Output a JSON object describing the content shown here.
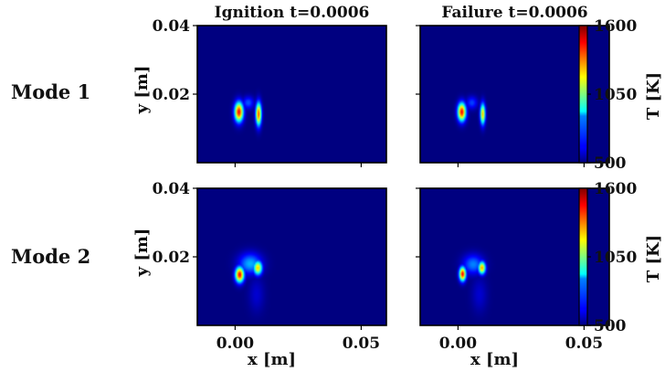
{
  "chart_data": {
    "type": "heatmap",
    "rows": [
      {
        "label": "Mode 1"
      },
      {
        "label": "Mode 2"
      }
    ],
    "columns": [
      {
        "title": "Ignition t=0.0006"
      },
      {
        "title": "Failure t=0.0006"
      }
    ],
    "xlabel": "x [m]",
    "ylabel": "y [m]",
    "xlim": [
      -0.015,
      0.06
    ],
    "ylim": [
      0.0,
      0.04
    ],
    "xticks": [
      0.0,
      0.05
    ],
    "xticklabels": [
      "0.00",
      "0.05"
    ],
    "yticks": [
      0.04,
      0.02
    ],
    "yticklabels": [
      "0.04",
      "0.02"
    ],
    "colorbar": {
      "label": "T [K]",
      "min": 500,
      "max": 1600,
      "ticks": [
        1600,
        1050,
        500
      ],
      "ticklabels": [
        "1600",
        "1050",
        "500"
      ],
      "colormap": "jet"
    },
    "panels": [
      {
        "row": 0,
        "col": 0,
        "hotspots": [
          {
            "x": 0.0015,
            "y": 0.0148,
            "sx": 0.0017,
            "sy": 0.0028,
            "T": 1600
          },
          {
            "x": 0.0093,
            "y": 0.0142,
            "sx": 0.0011,
            "sy": 0.0033,
            "T": 1500
          },
          {
            "x": 0.0052,
            "y": 0.0175,
            "sx": 0.0022,
            "sy": 0.0018,
            "T": 760
          }
        ]
      },
      {
        "row": 0,
        "col": 1,
        "hotspots": [
          {
            "x": 0.0015,
            "y": 0.0148,
            "sx": 0.0016,
            "sy": 0.0026,
            "T": 1600
          },
          {
            "x": 0.0098,
            "y": 0.0142,
            "sx": 0.001,
            "sy": 0.003,
            "T": 1350
          },
          {
            "x": 0.0055,
            "y": 0.0175,
            "sx": 0.0022,
            "sy": 0.0018,
            "T": 740
          }
        ]
      },
      {
        "row": 1,
        "col": 0,
        "hotspots": [
          {
            "x": 0.0018,
            "y": 0.0148,
            "sx": 0.0017,
            "sy": 0.0022,
            "T": 1600
          },
          {
            "x": 0.009,
            "y": 0.0168,
            "sx": 0.0017,
            "sy": 0.002,
            "T": 1350
          },
          {
            "x": 0.006,
            "y": 0.018,
            "sx": 0.0045,
            "sy": 0.003,
            "T": 880
          },
          {
            "x": 0.0085,
            "y": 0.009,
            "sx": 0.003,
            "sy": 0.005,
            "T": 600
          }
        ]
      },
      {
        "row": 1,
        "col": 1,
        "hotspots": [
          {
            "x": 0.0018,
            "y": 0.015,
            "sx": 0.0013,
            "sy": 0.002,
            "T": 1600
          },
          {
            "x": 0.0095,
            "y": 0.0168,
            "sx": 0.0014,
            "sy": 0.0018,
            "T": 1400
          },
          {
            "x": 0.006,
            "y": 0.0178,
            "sx": 0.004,
            "sy": 0.0028,
            "T": 820
          },
          {
            "x": 0.0085,
            "y": 0.009,
            "sx": 0.003,
            "sy": 0.005,
            "T": 600
          }
        ]
      }
    ]
  }
}
